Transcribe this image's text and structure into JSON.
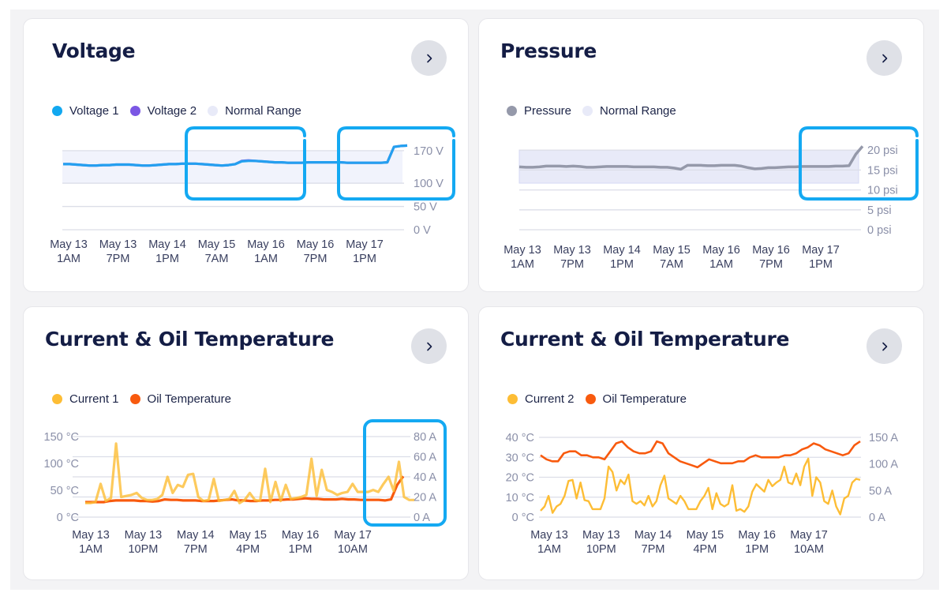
{
  "cards": [
    {
      "title": "Voltage",
      "open_button_label": "Open",
      "legend": [
        {
          "label": "Voltage 1",
          "color": "#12a8f0"
        },
        {
          "label": "Voltage 2",
          "color": "#7b57e4"
        },
        {
          "label": "Normal Range",
          "color": "#e8eaf8"
        }
      ]
    },
    {
      "title": "Pressure",
      "open_button_label": "Open",
      "legend": [
        {
          "label": "Pressure",
          "color": "#9599aa"
        },
        {
          "label": "Normal Range",
          "color": "#e8eaf8"
        }
      ]
    },
    {
      "title": "Current & Oil Temperature",
      "open_button_label": "Open",
      "legend": [
        {
          "label": "Current 1",
          "color": "#fdbd35"
        },
        {
          "label": "Oil Temperature",
          "color": "#f85a0e"
        }
      ]
    },
    {
      "title": "Current & Oil Temperature",
      "open_button_label": "Open",
      "legend": [
        {
          "label": "Current 2",
          "color": "#fdbd35"
        },
        {
          "label": "Oil Temperature",
          "color": "#f85a0e"
        }
      ]
    }
  ],
  "colors": {
    "highlight": "#14a9f2",
    "title": "#141d45",
    "grid": "#dcdee8",
    "normal_range": "#e8eaf8"
  },
  "chart_data": [
    {
      "type": "line",
      "title": "Voltage",
      "x_ticks": [
        "May 13\n1AM",
        "May 13\n7PM",
        "May 14\n1PM",
        "May 15\n7AM",
        "May 16\n1AM",
        "May 16\n7PM",
        "May 17\n1PM"
      ],
      "y_ticks": [
        "0 V",
        "50 V",
        "100 V",
        "170 V"
      ],
      "y_tick_values": [
        0,
        50,
        100,
        170
      ],
      "ylim": [
        0,
        185
      ],
      "normal_range": [
        100,
        170
      ],
      "y_axis": "right",
      "series": [
        {
          "name": "Voltage 1",
          "color": "#12a8f0",
          "values": [
            141,
            141,
            140,
            139,
            138,
            138,
            139,
            139,
            140,
            140,
            140,
            139,
            138,
            138,
            139,
            140,
            141,
            141,
            142,
            142,
            142,
            141,
            140,
            139,
            138,
            139,
            141,
            147,
            148,
            148,
            147,
            146,
            145,
            145,
            144,
            144,
            144,
            145,
            145,
            145,
            145,
            145,
            145,
            144,
            144,
            144,
            144,
            144,
            144,
            145,
            178,
            180,
            181
          ]
        },
        {
          "name": "Voltage 2",
          "color": "#7b57e4",
          "values": [
            141,
            141,
            140,
            139,
            138,
            138,
            139,
            139,
            140,
            140,
            140,
            139,
            138,
            138,
            139,
            140,
            141,
            141,
            142,
            142,
            142,
            141,
            140,
            139,
            138,
            139,
            141,
            148,
            149,
            148,
            147,
            146,
            145,
            145,
            144,
            144,
            144,
            145,
            145,
            145,
            145,
            145,
            145,
            144,
            144,
            144,
            144,
            144,
            144,
            145,
            178,
            180,
            181
          ]
        }
      ],
      "highlights": [
        "May 15 7AM – May 16 7PM (100–185 V)",
        "May 17 1PM onward (50–185 V)"
      ]
    },
    {
      "type": "line",
      "title": "Pressure",
      "x_ticks": [
        "May 13\n1AM",
        "May 13\n7PM",
        "May 14\n1PM",
        "May 15\n7AM",
        "May 16\n1AM",
        "May 16\n7PM",
        "May 17\n1PM"
      ],
      "y_ticks": [
        "0 psi",
        "5 psi",
        "10 psi",
        "15 psi",
        "20 psi"
      ],
      "y_tick_values": [
        0,
        5,
        10,
        15,
        20
      ],
      "ylim": [
        0,
        22
      ],
      "normal_range": [
        11.5,
        20
      ],
      "y_axis": "right",
      "series": [
        {
          "name": "Pressure",
          "color": "#9599aa",
          "values": [
            15.8,
            15.7,
            15.7,
            15.8,
            16.0,
            16.0,
            16.0,
            15.9,
            16.0,
            15.9,
            15.7,
            15.7,
            15.8,
            15.9,
            15.9,
            15.9,
            15.9,
            15.8,
            15.8,
            15.8,
            15.8,
            15.7,
            15.7,
            15.5,
            15.2,
            16.2,
            16.2,
            16.2,
            16.1,
            16.1,
            16.2,
            16.2,
            16.2,
            16.0,
            15.6,
            15.3,
            15.4,
            15.6,
            15.6,
            15.7,
            15.8,
            15.8,
            15.9,
            15.9,
            15.9,
            15.9,
            15.9,
            16.0,
            16.0,
            16.1,
            19.0,
            21.0
          ]
        }
      ],
      "highlights": [
        "May 16 7PM onward (10–22 psi)"
      ]
    },
    {
      "type": "line",
      "title": "Current & Oil Temperature",
      "x_ticks": [
        "May 13\n1AM",
        "May 13\n10PM",
        "May 14\n7PM",
        "May 15\n4PM",
        "May 16\n1PM",
        "May 17\n10AM"
      ],
      "y_left_ticks": [
        "0 °C",
        "50 °C",
        "100 °C",
        "150 °C"
      ],
      "y_left_values": [
        0,
        50,
        100,
        150
      ],
      "y_left_lim": [
        0,
        150
      ],
      "y_right_ticks": [
        "0 A",
        "20 A",
        "40 A",
        "60 A",
        "80 A"
      ],
      "y_right_values": [
        0,
        20,
        40,
        60,
        80
      ],
      "y_right_lim": [
        0,
        80
      ],
      "series": [
        {
          "name": "Oil Temperature",
          "axis": "left",
          "color": "#f85a0e",
          "values": [
            28,
            28,
            28,
            28,
            30,
            31,
            31,
            31,
            31,
            30,
            30,
            29,
            30,
            33,
            32,
            32,
            31,
            31,
            31,
            30,
            30,
            30,
            31,
            32,
            33,
            31,
            31,
            30,
            30,
            31,
            31,
            32,
            32,
            33,
            33,
            34,
            35,
            34,
            34,
            33,
            33,
            33,
            34,
            33,
            33,
            32,
            32,
            32,
            32,
            31,
            33,
            60,
            76
          ]
        },
        {
          "name": "Current 1",
          "axis": "right",
          "color": "#fdbd35",
          "values": [
            14,
            14,
            15,
            33,
            16,
            19,
            73,
            20,
            21,
            22,
            24,
            19,
            17,
            17,
            18,
            22,
            40,
            24,
            32,
            30,
            42,
            43,
            20,
            16,
            17,
            38,
            16,
            17,
            18,
            26,
            14,
            17,
            24,
            17,
            16,
            48,
            15,
            35,
            16,
            32,
            18,
            19,
            20,
            22,
            58,
            21,
            47,
            27,
            25,
            22,
            24,
            25,
            33,
            25,
            25,
            25,
            27,
            25,
            33,
            40,
            26,
            55,
            20,
            17,
            17
          ]
        }
      ],
      "highlights": [
        "May 17 10AM onward (0–85 A)"
      ]
    },
    {
      "type": "line",
      "title": "Current & Oil Temperature",
      "x_ticks": [
        "May 13\n1AM",
        "May 13\n10PM",
        "May 14\n7PM",
        "May 15\n4PM",
        "May 16\n1PM",
        "May 17\n10AM"
      ],
      "y_left_ticks": [
        "0 °C",
        "10 °C",
        "20 °C",
        "30 °C",
        "40 °C"
      ],
      "y_left_values": [
        0,
        10,
        20,
        30,
        40
      ],
      "y_left_lim": [
        0,
        40
      ],
      "y_right_ticks": [
        "0 A",
        "50 A",
        "100 A",
        "150 A"
      ],
      "y_right_values": [
        0,
        50,
        100,
        150
      ],
      "y_right_lim": [
        0,
        150
      ],
      "series": [
        {
          "name": "Oil Temperature",
          "axis": "left",
          "color": "#f85a0e",
          "values": [
            31,
            29,
            28,
            28,
            32,
            33,
            33,
            31,
            31,
            30,
            30,
            29,
            33,
            37,
            38,
            35,
            33,
            32,
            32,
            33,
            38,
            37,
            32,
            30,
            28,
            27,
            26,
            25,
            27,
            29,
            28,
            27,
            27,
            27,
            28,
            28,
            30,
            31,
            30,
            30,
            30,
            30,
            31,
            31,
            32,
            34,
            35,
            37,
            36,
            34,
            33,
            32,
            31,
            32,
            36,
            38
          ]
        },
        {
          "name": "Current 2",
          "axis": "right",
          "color": "#fdbd35",
          "values": [
            12,
            20,
            40,
            8,
            20,
            25,
            40,
            68,
            70,
            35,
            65,
            32,
            30,
            15,
            15,
            15,
            35,
            95,
            85,
            50,
            70,
            62,
            80,
            30,
            25,
            30,
            22,
            40,
            20,
            30,
            60,
            78,
            35,
            30,
            25,
            40,
            30,
            15,
            15,
            15,
            30,
            40,
            55,
            15,
            45,
            25,
            20,
            25,
            60,
            12,
            15,
            10,
            20,
            48,
            62,
            55,
            48,
            70,
            58,
            65,
            70,
            95,
            65,
            62,
            82,
            60,
            95,
            110,
            40,
            75,
            65,
            30,
            25,
            50,
            20,
            5,
            35,
            40,
            65,
            72,
            70
          ]
        }
      ],
      "highlights": []
    }
  ]
}
